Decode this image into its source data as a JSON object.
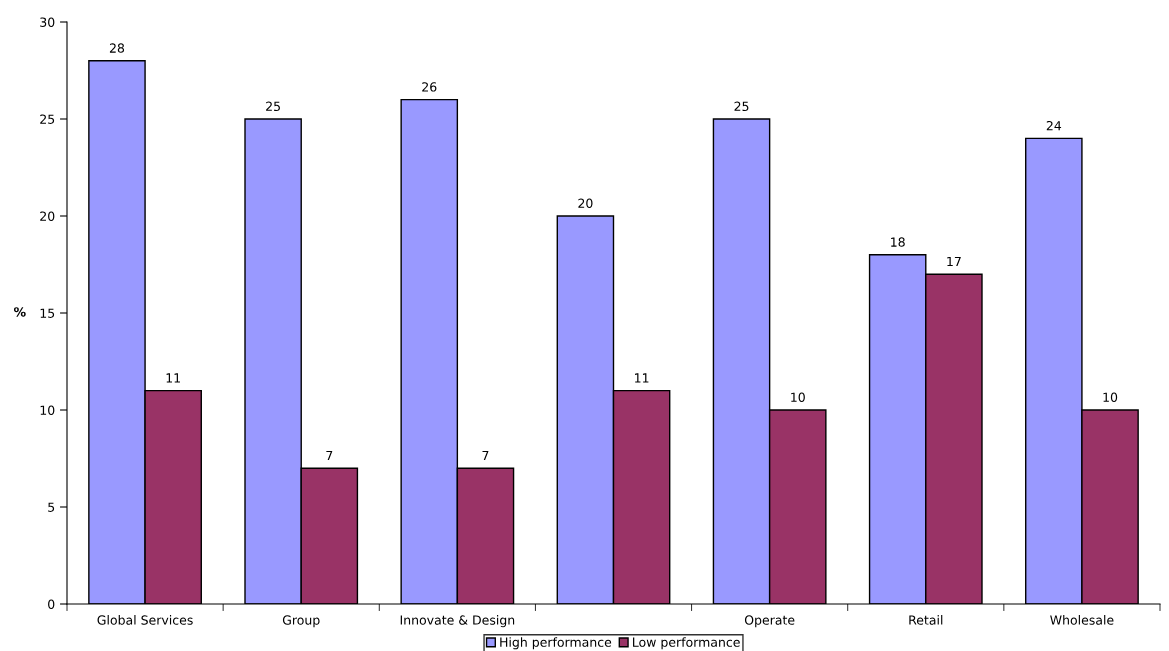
{
  "chart_data": {
    "type": "bar",
    "ylabel": "%",
    "categories": [
      "Global Services",
      "Group",
      "Innovate & Design",
      null,
      "Operate",
      "Retail",
      "Wholesale"
    ],
    "series": [
      {
        "name": "High performance",
        "color": "#9999ff",
        "values": [
          28,
          25,
          26,
          20,
          25,
          18,
          24
        ]
      },
      {
        "name": "Low performance",
        "color": "#993366",
        "values": [
          11,
          7,
          7,
          11,
          10,
          17,
          10
        ]
      }
    ],
    "ylim": [
      0,
      30
    ],
    "yticks": [
      0,
      5,
      10,
      15,
      20,
      25,
      30
    ],
    "grid": false,
    "legend": "bottom",
    "data_labels": true
  }
}
